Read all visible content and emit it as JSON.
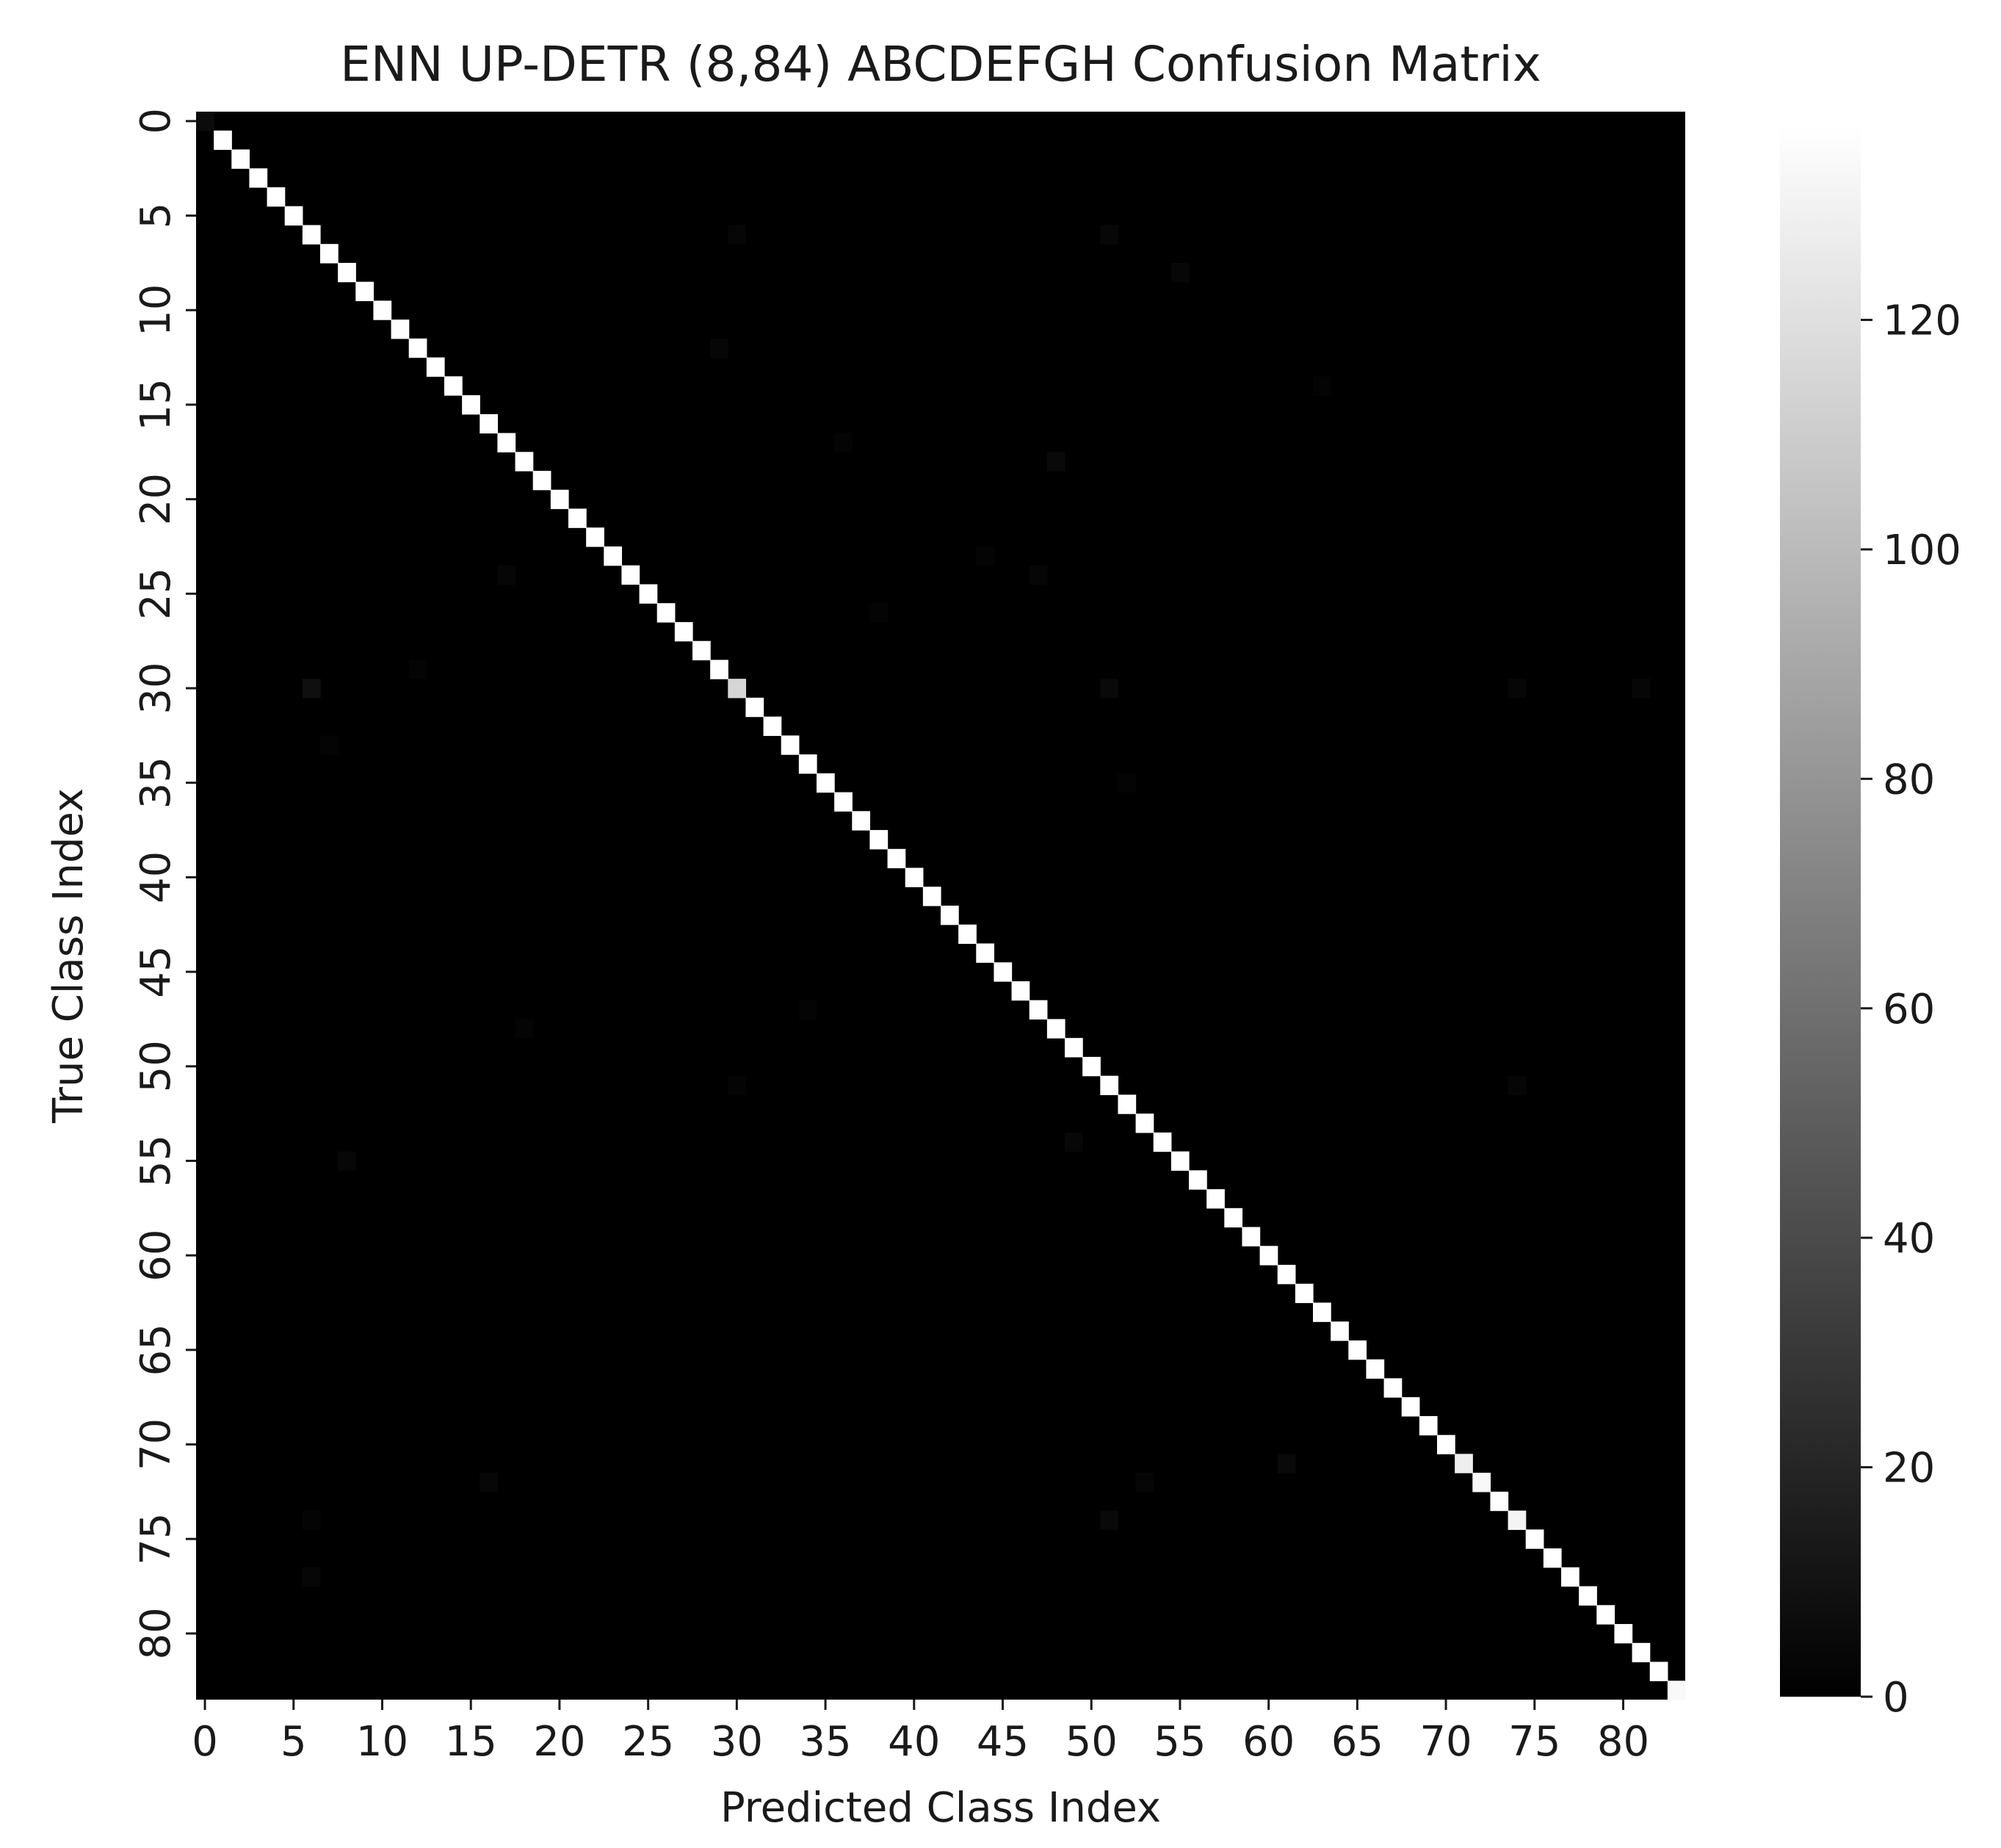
{
  "chart_data": {
    "type": "heatmap",
    "title": "ENN UP-DETR (8,84) ABCDEFGH Confusion Matrix",
    "xlabel": "Predicted Class Index",
    "ylabel": "True Class Index",
    "n_classes": 84,
    "colormap": "gray",
    "vmin": 0,
    "vmax": 137,
    "grid": false,
    "colorbar": {
      "ticks": [
        0,
        20,
        40,
        60,
        80,
        100,
        120
      ],
      "labels": [
        "0",
        "20",
        "40",
        "60",
        "80",
        "100",
        "120"
      ]
    },
    "x_ticks": [
      0,
      5,
      10,
      15,
      20,
      25,
      30,
      35,
      40,
      45,
      50,
      55,
      60,
      65,
      70,
      75,
      80
    ],
    "x_tick_labels": [
      "0",
      "5",
      "10",
      "15",
      "20",
      "25",
      "30",
      "35",
      "40",
      "45",
      "50",
      "55",
      "60",
      "65",
      "70",
      "75",
      "80"
    ],
    "y_ticks": [
      0,
      5,
      10,
      15,
      20,
      25,
      30,
      35,
      40,
      45,
      50,
      55,
      60,
      65,
      70,
      75,
      80
    ],
    "y_tick_labels": [
      "0",
      "5",
      "10",
      "15",
      "20",
      "25",
      "30",
      "35",
      "40",
      "45",
      "50",
      "55",
      "60",
      "65",
      "70",
      "75",
      "80"
    ],
    "diagonal_default": 137,
    "diagonal_overrides": [
      {
        "index": 0,
        "value": 6
      },
      {
        "index": 30,
        "value": 115
      },
      {
        "index": 71,
        "value": 128
      },
      {
        "index": 72,
        "value": 133
      },
      {
        "index": 74,
        "value": 131
      },
      {
        "index": 83,
        "value": 134
      }
    ],
    "off_diagonal": [
      {
        "true": 6,
        "pred": 30,
        "value": 3
      },
      {
        "true": 6,
        "pred": 51,
        "value": 4
      },
      {
        "true": 8,
        "pred": 55,
        "value": 4
      },
      {
        "true": 12,
        "pred": 29,
        "value": 3
      },
      {
        "true": 14,
        "pred": 63,
        "value": 2
      },
      {
        "true": 17,
        "pred": 36,
        "value": 2
      },
      {
        "true": 18,
        "pred": 48,
        "value": 5
      },
      {
        "true": 23,
        "pred": 44,
        "value": 2
      },
      {
        "true": 24,
        "pred": 17,
        "value": 3
      },
      {
        "true": 24,
        "pred": 47,
        "value": 3
      },
      {
        "true": 26,
        "pred": 38,
        "value": 2
      },
      {
        "true": 29,
        "pred": 12,
        "value": 2
      },
      {
        "true": 30,
        "pred": 6,
        "value": 8
      },
      {
        "true": 30,
        "pred": 51,
        "value": 5
      },
      {
        "true": 30,
        "pred": 74,
        "value": 3
      },
      {
        "true": 30,
        "pred": 81,
        "value": 3
      },
      {
        "true": 33,
        "pred": 7,
        "value": 2
      },
      {
        "true": 35,
        "pred": 52,
        "value": 2
      },
      {
        "true": 47,
        "pred": 34,
        "value": 2
      },
      {
        "true": 48,
        "pred": 18,
        "value": 2
      },
      {
        "true": 51,
        "pred": 30,
        "value": 2
      },
      {
        "true": 51,
        "pred": 74,
        "value": 3
      },
      {
        "true": 54,
        "pred": 49,
        "value": 4
      },
      {
        "true": 55,
        "pred": 8,
        "value": 4
      },
      {
        "true": 71,
        "pred": 61,
        "value": 5
      },
      {
        "true": 72,
        "pred": 16,
        "value": 4
      },
      {
        "true": 72,
        "pred": 53,
        "value": 3
      },
      {
        "true": 74,
        "pred": 51,
        "value": 5
      },
      {
        "true": 74,
        "pred": 6,
        "value": 2
      },
      {
        "true": 77,
        "pred": 6,
        "value": 3
      }
    ]
  }
}
